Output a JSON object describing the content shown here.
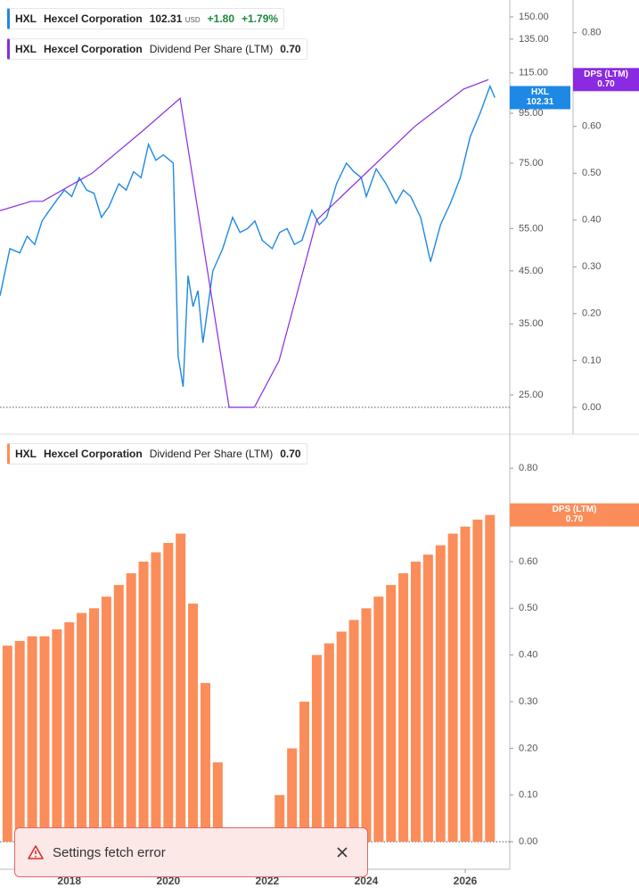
{
  "legends": [
    {
      "ticker": "HXL",
      "company": "Hexcel Corporation",
      "price": "102.31",
      "currency": "USD",
      "change": "+1.80",
      "change_pct": "+1.79%",
      "color": "#1e88e5"
    },
    {
      "ticker": "HXL",
      "company": "Hexcel Corporation",
      "metric": "Dividend Per Share (LTM)",
      "value": "0.70",
      "color": "#8a2be2"
    },
    {
      "ticker": "HXL",
      "company": "Hexcel Corporation",
      "metric": "Dividend Per Share (LTM)",
      "value": "0.70",
      "color": "#fb8d5a"
    }
  ],
  "badges": [
    {
      "label": "HXL",
      "value": "102.31",
      "color": "#1e88e5"
    },
    {
      "label": "DPS (LTM)",
      "value": "0.70",
      "color": "#8a2be2"
    },
    {
      "label": "DPS (LTM)",
      "value": "0.70",
      "color": "#fb8d5a"
    }
  ],
  "toast": {
    "message": "Settings fetch error"
  },
  "chart_data": [
    {
      "type": "line",
      "log_y": true,
      "xlim": [
        2016.6,
        2026.9
      ],
      "ylim": [
        22.3,
        162.5
      ],
      "yticks": [
        {
          "value": 150,
          "label": "150.00"
        },
        {
          "value": 135,
          "label": "135.00"
        },
        {
          "value": 115,
          "label": "115.00"
        },
        {
          "value": 95,
          "label": "95.00"
        },
        {
          "value": 75,
          "label": "75.00"
        },
        {
          "value": 55,
          "label": "55.00"
        },
        {
          "value": 45,
          "label": "45.00"
        },
        {
          "value": 35,
          "label": "35.00"
        },
        {
          "value": 25,
          "label": "25.00"
        }
      ],
      "y2lim": [
        -0.025,
        0.87
      ],
      "y2ticks": [
        {
          "value": 0.8,
          "label": "0.80"
        },
        {
          "value": 0.7,
          "label": "0.70"
        },
        {
          "value": 0.6,
          "label": "0.60"
        },
        {
          "value": 0.5,
          "label": "0.50"
        },
        {
          "value": 0.4,
          "label": "0.40"
        },
        {
          "value": 0.3,
          "label": "0.30"
        },
        {
          "value": 0.2,
          "label": "0.20"
        },
        {
          "value": 0.1,
          "label": "0.10"
        },
        {
          "value": 0,
          "label": "0.00"
        }
      ],
      "series": [
        {
          "name": "HXL",
          "color": "#1e88e5",
          "x": [
            2016.6,
            2016.8,
            2017.0,
            2017.15,
            2017.3,
            2017.45,
            2017.6,
            2017.75,
            2017.9,
            2018.05,
            2018.2,
            2018.35,
            2018.5,
            2018.65,
            2018.8,
            2019.0,
            2019.15,
            2019.3,
            2019.45,
            2019.6,
            2019.75,
            2019.9,
            2020.1,
            2020.2,
            2020.3,
            2020.4,
            2020.5,
            2020.6,
            2020.7,
            2020.9,
            2021.1,
            2021.3,
            2021.45,
            2021.6,
            2021.75,
            2021.9,
            2022.1,
            2022.25,
            2022.4,
            2022.55,
            2022.7,
            2022.9,
            2023.05,
            2023.2,
            2023.4,
            2023.6,
            2023.75,
            2023.9,
            2024.0,
            2024.2,
            2024.4,
            2024.6,
            2024.75,
            2024.9,
            2025.1,
            2025.3,
            2025.5,
            2025.7,
            2025.9,
            2026.1,
            2026.3,
            2026.5,
            2026.6
          ],
          "values": [
            40,
            50,
            49,
            53,
            51,
            57,
            60,
            63,
            66,
            64,
            70,
            66,
            65,
            58,
            61,
            68,
            66,
            72,
            70,
            82,
            76,
            78,
            75,
            30,
            26,
            44,
            38,
            41,
            32,
            45,
            50,
            58,
            54,
            55,
            57,
            52,
            50,
            54,
            55,
            51,
            52,
            60,
            56,
            58,
            68,
            75,
            72,
            70,
            64,
            73,
            68,
            62,
            66,
            64,
            58,
            47,
            56,
            62,
            70,
            85,
            95,
            108,
            102.31
          ]
        },
        {
          "name": "Dividend Per Share (LTM)",
          "color": "#8a2be2",
          "axis": "y2",
          "x": [
            2016.6,
            2017.23,
            2017.46,
            2018.46,
            2019.48,
            2020.24,
            2021.23,
            2021.74,
            2022.24,
            2023.0,
            2024.98,
            2025.97,
            2026.47
          ],
          "values": [
            0.42,
            0.44,
            0.44,
            0.5,
            0.59,
            0.66,
            0,
            0,
            0.1,
            0.4,
            0.6,
            0.68,
            0.7
          ]
        }
      ]
    },
    {
      "type": "bar",
      "xlim": [
        2016.6,
        2026.9
      ],
      "xticks": [
        2018,
        2020,
        2022,
        2024,
        2026
      ],
      "ylim": [
        -0.059,
        0.873
      ],
      "yticks": [
        {
          "value": 0.8,
          "label": "0.80"
        },
        {
          "value": 0.7,
          "label": "0.70"
        },
        {
          "value": 0.6,
          "label": "0.60"
        },
        {
          "value": 0.5,
          "label": "0.50"
        },
        {
          "value": 0.4,
          "label": "0.40"
        },
        {
          "value": 0.3,
          "label": "0.30"
        },
        {
          "value": 0.2,
          "label": "0.20"
        },
        {
          "value": 0.1,
          "label": "0.10"
        },
        {
          "value": 0,
          "label": "0.00"
        }
      ],
      "x": [
        2016.75,
        2017.0,
        2017.25,
        2017.5,
        2017.75,
        2018.0,
        2018.25,
        2018.5,
        2018.75,
        2019.0,
        2019.25,
        2019.5,
        2019.75,
        2020.0,
        2020.25,
        2020.5,
        2020.75,
        2021.0,
        2021.25,
        2021.5,
        2021.75,
        2022.0,
        2022.25,
        2022.5,
        2022.75,
        2023.0,
        2023.25,
        2023.5,
        2023.75,
        2024.0,
        2024.25,
        2024.5,
        2024.75,
        2025.0,
        2025.25,
        2025.5,
        2025.75,
        2026.0,
        2026.25,
        2026.5
      ],
      "series": [
        {
          "name": "Dividend Per Share (LTM)",
          "color": "#fb8d5a",
          "values": [
            0.42,
            0.43,
            0.44,
            0.44,
            0.455,
            0.47,
            0.49,
            0.5,
            0.525,
            0.55,
            0.575,
            0.6,
            0.62,
            0.64,
            0.66,
            0.51,
            0.34,
            0.17,
            0,
            0,
            0,
            0,
            0.1,
            0.2,
            0.3,
            0.4,
            0.425,
            0.45,
            0.475,
            0.5,
            0.525,
            0.55,
            0.575,
            0.6,
            0.615,
            0.635,
            0.66,
            0.675,
            0.69,
            0.7
          ]
        }
      ]
    }
  ]
}
